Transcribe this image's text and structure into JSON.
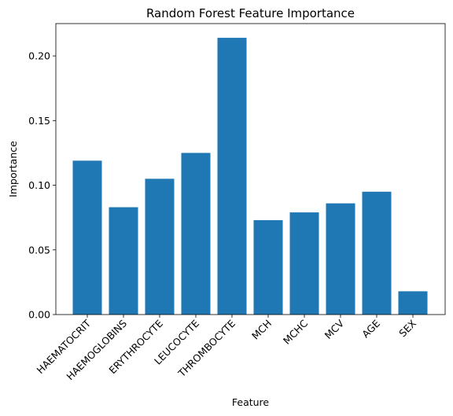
{
  "chart_data": {
    "type": "bar",
    "title": "Random Forest Feature Importance",
    "xlabel": "Feature",
    "ylabel": "Importance",
    "categories": [
      "HAEMATOCRIT",
      "HAEMOGLOBINS",
      "ERYTHROCYTE",
      "LEUCOCYTE",
      "THROMBOCYTE",
      "MCH",
      "MCHC",
      "MCV",
      "AGE",
      "SEX"
    ],
    "values": [
      0.119,
      0.083,
      0.105,
      0.125,
      0.214,
      0.073,
      0.079,
      0.086,
      0.095,
      0.018
    ],
    "ylim": [
      0,
      0.225
    ],
    "yticks": [
      0.0,
      0.05,
      0.1,
      0.15,
      0.2
    ],
    "ytick_labels": [
      "0.00",
      "0.05",
      "0.10",
      "0.15",
      "0.20"
    ],
    "xtick_rotation": 45,
    "grid": false,
    "bar_color": "#1f77b4"
  }
}
